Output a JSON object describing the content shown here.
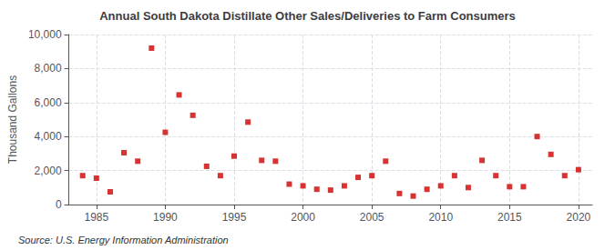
{
  "chart_data": {
    "type": "scatter",
    "title": "Annual South Dakota Distillate Other Sales/Deliveries to Farm Consumers",
    "ylabel": "Thousand Gallons",
    "annotations": [
      "Source: U.S. Energy Information Administration"
    ],
    "color": "#cc0000",
    "marker": "square",
    "grid": true,
    "xlim": [
      1983,
      2021
    ],
    "xticks": [
      1985,
      1990,
      1995,
      2000,
      2005,
      2010,
      2015,
      2020
    ],
    "ylim": [
      0,
      10000
    ],
    "yticks": [
      0,
      {
        "value": 2000,
        "label": "2,000"
      },
      {
        "value": 4000,
        "label": "4,000"
      },
      {
        "value": 6000,
        "label": "6,000"
      },
      {
        "value": 8000,
        "label": "8,000"
      },
      {
        "value": 10000,
        "label": "10,000"
      }
    ],
    "x": [
      1984,
      1985,
      1986,
      1987,
      1988,
      1989,
      1990,
      1991,
      1992,
      1993,
      1994,
      1995,
      1996,
      1997,
      1998,
      1999,
      2000,
      2001,
      2002,
      2003,
      2004,
      2005,
      2006,
      2007,
      2008,
      2009,
      2010,
      2011,
      2012,
      2013,
      2014,
      2015,
      2016,
      2017,
      2018,
      2019,
      2020
    ],
    "values": [
      1700,
      1550,
      750,
      3050,
      2550,
      9200,
      4250,
      6450,
      5250,
      2250,
      1700,
      2850,
      4850,
      2600,
      2550,
      1200,
      1100,
      900,
      850,
      1100,
      1600,
      1700,
      2550,
      650,
      500,
      900,
      1100,
      1700,
      1000,
      2600,
      1700,
      1050,
      1050,
      4000,
      2950,
      1700,
      2050
    ]
  }
}
